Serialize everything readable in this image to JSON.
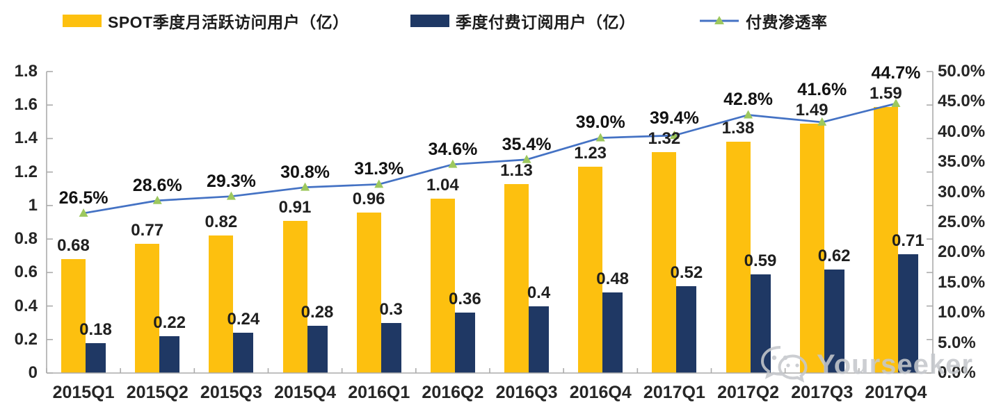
{
  "watermark": {
    "text": "Yourseeker",
    "icon": "wechat-icon"
  },
  "colors": {
    "mau_bar": "#FDC00F",
    "subs_bar": "#1F3864",
    "line": "#4472C4",
    "marker": "#9DC85E",
    "axis": "#ABABAB",
    "watermark": "#c5c8cc"
  },
  "chart_data": {
    "type": "combo-bar-line",
    "title": "",
    "categories": [
      "2015Q1",
      "2015Q2",
      "2015Q3",
      "2015Q4",
      "2016Q1",
      "2016Q2",
      "2016Q3",
      "2016Q4",
      "2017Q1",
      "2017Q2",
      "2017Q3",
      "2017Q4"
    ],
    "series": [
      {
        "name": "SPOT季度月活跃访问用户（亿）",
        "type": "bar",
        "axis": "left",
        "color": "#FDC00F",
        "values": [
          0.68,
          0.77,
          0.82,
          0.91,
          0.96,
          1.04,
          1.13,
          1.23,
          1.32,
          1.38,
          1.49,
          1.59
        ],
        "labels": [
          "0.68",
          "0.77",
          "0.82",
          "0.91",
          "0.96",
          "1.04",
          "1.13",
          "1.23",
          "1.32",
          "1.38",
          "1.49",
          "1.59"
        ]
      },
      {
        "name": "季度付费订阅用户（亿）",
        "type": "bar",
        "axis": "left",
        "color": "#1F3864",
        "values": [
          0.18,
          0.22,
          0.24,
          0.28,
          0.3,
          0.36,
          0.4,
          0.48,
          0.52,
          0.59,
          0.62,
          0.71
        ],
        "labels": [
          "0.18",
          "0.22",
          "0.24",
          "0.28",
          "0.3",
          "0.36",
          "0.4",
          "0.48",
          "0.52",
          "0.59",
          "0.62",
          "0.71"
        ]
      },
      {
        "name": "付费渗透率",
        "type": "line",
        "axis": "right",
        "color": "#4472C4",
        "marker": "triangle",
        "marker_color": "#9DC85E",
        "values": [
          26.5,
          28.6,
          29.3,
          30.8,
          31.3,
          34.6,
          35.4,
          39.0,
          39.4,
          42.8,
          41.6,
          44.7
        ],
        "labels": [
          "26.5%",
          "28.6%",
          "29.3%",
          "30.8%",
          "31.3%",
          "34.6%",
          "35.4%",
          "39.0%",
          "39.4%",
          "42.8%",
          "41.6%",
          "44.7%"
        ]
      }
    ],
    "left_axis": {
      "min": 0,
      "max": 1.8,
      "tick_labels": [
        "0",
        "0.2",
        "0.4",
        "0.6",
        "0.8",
        "1",
        "1.2",
        "1.4",
        "1.6",
        "1.8"
      ]
    },
    "right_axis": {
      "min": 0,
      "max": 50,
      "tick_labels": [
        "0.0%",
        "5.0%",
        "10.0%",
        "15.0%",
        "20.0%",
        "25.0%",
        "30.0%",
        "35.0%",
        "40.0%",
        "45.0%",
        "50.0%"
      ]
    },
    "grid": false,
    "legend_position": "top"
  }
}
